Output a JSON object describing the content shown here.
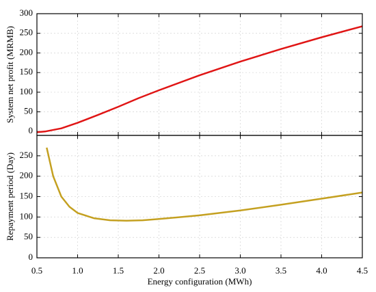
{
  "chart_data": [
    {
      "type": "line",
      "ylabel": "System net profit (MRMB)",
      "x": [
        0.5,
        0.6,
        0.8,
        1.0,
        1.25,
        1.5,
        1.75,
        2.0,
        2.5,
        3.0,
        3.5,
        4.0,
        4.5
      ],
      "series": [
        {
          "name": "System net profit",
          "color": "#e01515",
          "values": [
            -2,
            0,
            8,
            22,
            42,
            63,
            85,
            105,
            143,
            178,
            210,
            240,
            268
          ]
        }
      ],
      "ylim": [
        -10,
        300
      ],
      "yticks": [
        0,
        50,
        100,
        150,
        200,
        250,
        300
      ],
      "grid": true
    },
    {
      "type": "line",
      "ylabel": "Repayment period (Day)",
      "xlabel": "Energy configuration (MWh)",
      "x": [
        0.62,
        0.7,
        0.8,
        0.9,
        1.0,
        1.2,
        1.4,
        1.6,
        1.8,
        2.0,
        2.5,
        3.0,
        3.5,
        4.0,
        4.5
      ],
      "series": [
        {
          "name": "Repayment period",
          "color": "#c4a020",
          "values": [
            270,
            200,
            150,
            125,
            110,
            97,
            92,
            91,
            92,
            95,
            104,
            116,
            130,
            145,
            160
          ]
        }
      ],
      "xlim": [
        0.5,
        4.5
      ],
      "xticks": [
        0.5,
        {
          "value": 1,
          "label": "1.0"
        },
        1.5,
        {
          "value": 2,
          "label": "2.0"
        },
        2.5,
        {
          "value": 3,
          "label": "3.0"
        },
        3.5,
        {
          "value": 4,
          "label": "4.0"
        },
        4.5
      ],
      "ylim": [
        0,
        300
      ],
      "yticks": [
        0,
        50,
        100,
        150,
        200,
        250
      ],
      "grid": true
    }
  ]
}
